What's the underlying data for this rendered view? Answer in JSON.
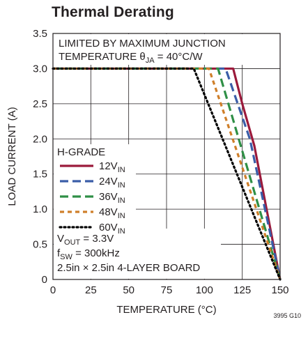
{
  "chart_data": {
    "type": "line",
    "title": "Thermal Derating",
    "xlabel": "TEMPERATURE (°C)",
    "ylabel": "LOAD CURRENT (A)",
    "xlim": [
      0,
      150
    ],
    "ylim": [
      0,
      3.5
    ],
    "x_ticks": [
      "0",
      "25",
      "50",
      "75",
      "100",
      "125",
      "150"
    ],
    "y_ticks": [
      "0",
      "0.5",
      "1.0",
      "1.5",
      "2.0",
      "2.5",
      "3.0",
      "3.5"
    ],
    "grid": true,
    "legend_position": "left",
    "legend_title": "H-GRADE",
    "annotations": {
      "top_line1": "LIMITED BY MAXIMUM JUNCTION",
      "top_line2_main": "TEMPERATURE θ",
      "top_line2_sub": "JA",
      "top_line2_end": " = 40°C/W",
      "vout_main": "V",
      "vout_sub": "OUT",
      "vout_end": " = 3.3V",
      "fsw_main": "f",
      "fsw_sub": "SW",
      "fsw_end": " = 300kHz",
      "board": "2.5in × 2.5in 4-LAYER BOARD"
    },
    "series": [
      {
        "name_main": "12V",
        "name_sub": "IN",
        "color": "#9b1a3b",
        "dash": "solid",
        "x": [
          0,
          119,
          125,
          133,
          150
        ],
        "y": [
          3.0,
          3.0,
          2.5,
          1.9,
          0.0
        ]
      },
      {
        "name_main": "24V",
        "name_sub": "IN",
        "color": "#3a5da8",
        "dash": "long",
        "x": [
          0,
          114,
          130,
          150
        ],
        "y": [
          3.0,
          3.0,
          2.0,
          0.0
        ]
      },
      {
        "name_main": "36V",
        "name_sub": "IN",
        "color": "#2f8f46",
        "dash": "long",
        "x": [
          0,
          109,
          150
        ],
        "y": [
          3.0,
          3.0,
          0.0
        ]
      },
      {
        "name_main": "48V",
        "name_sub": "IN",
        "color": "#cf7f2a",
        "dash": "short",
        "x": [
          0,
          103,
          150
        ],
        "y": [
          3.0,
          3.0,
          0.0
        ]
      },
      {
        "name_main": "60V",
        "name_sub": "IN",
        "color": "#000000",
        "dash": "dot",
        "x": [
          0,
          93,
          150
        ],
        "y": [
          3.0,
          3.0,
          0.0
        ]
      }
    ]
  },
  "figure_id": "3995 G10",
  "colors": {
    "axis": "#231f20",
    "grid": "#231f20"
  }
}
